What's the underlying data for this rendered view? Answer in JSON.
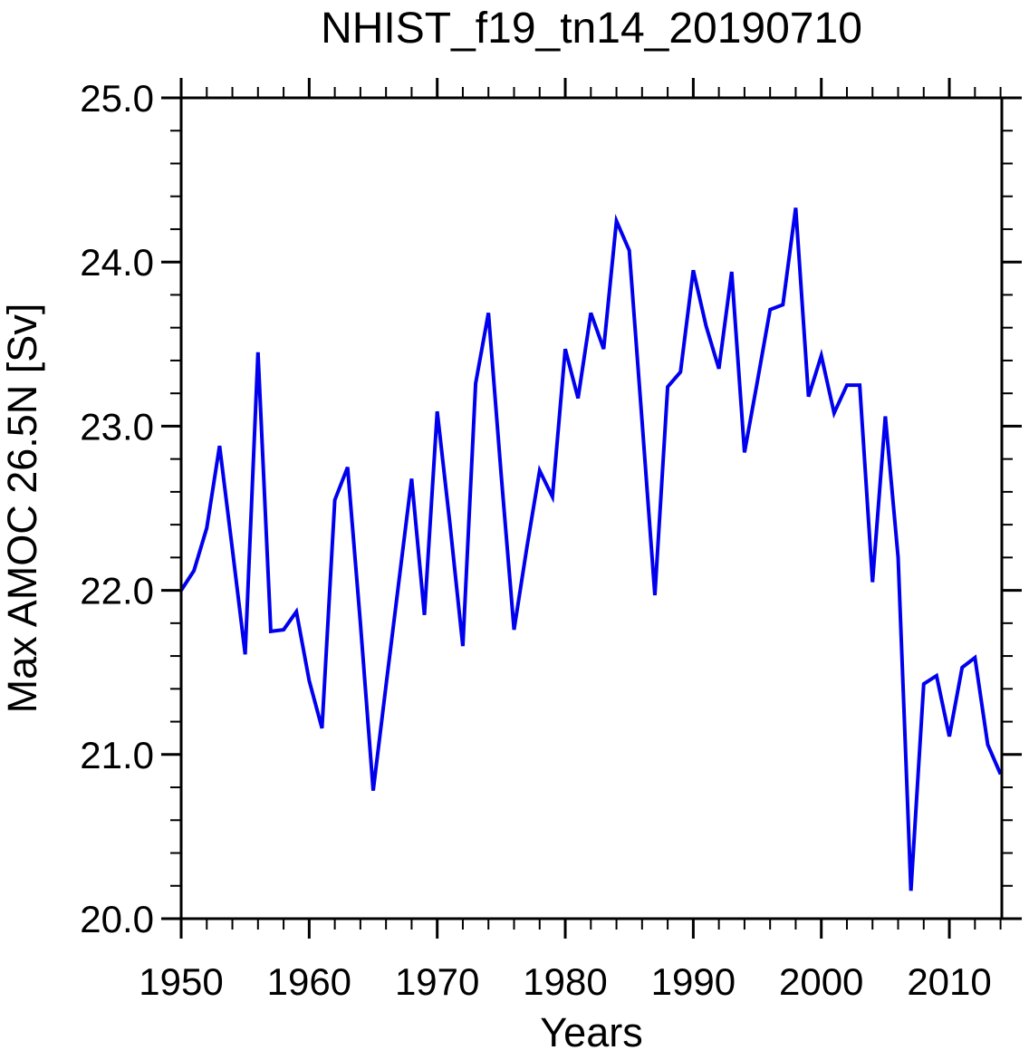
{
  "chart_data": {
    "type": "line",
    "title": "NHIST_f19_tn14_20190710",
    "xlabel": "Years",
    "ylabel": "Max AMOC 26.5N [Sv]",
    "xlim": [
      1950,
      2014.1
    ],
    "ylim": [
      20.0,
      25.0
    ],
    "grid": false,
    "x_major_ticks": [
      1950,
      1960,
      1970,
      1980,
      1990,
      2000,
      2010
    ],
    "x_major_tick_labels": [
      "1950",
      "1960",
      "1970",
      "1980",
      "1990",
      "2000",
      "2010"
    ],
    "x_minor_tick_step": 2,
    "y_major_ticks": [
      20,
      21,
      22,
      23,
      24,
      25
    ],
    "y_major_tick_labels": [
      "20.0",
      "21.0",
      "22.0",
      "23.0",
      "24.0",
      "25.0"
    ],
    "y_minor_tick_step": 0.2,
    "line_color": "#0000ee",
    "axis_color": "#000000",
    "series": [
      {
        "x": [
          1950,
          1951,
          1952,
          1953,
          1954,
          1955,
          1956,
          1957,
          1958,
          1959,
          1960,
          1961,
          1962,
          1963,
          1964,
          1965,
          1966,
          1967,
          1968,
          1969,
          1970,
          1971,
          1972,
          1973,
          1974,
          1975,
          1976,
          1977,
          1978,
          1979,
          1980,
          1981,
          1982,
          1983,
          1984,
          1985,
          1986,
          1987,
          1988,
          1989,
          1990,
          1991,
          1992,
          1993,
          1994,
          1995,
          1996,
          1997,
          1998,
          1999,
          2000,
          2001,
          2002,
          2003,
          2004,
          2005,
          2006,
          2007,
          2008,
          2009,
          2010,
          2011,
          2012,
          2013,
          2014
        ],
        "values": [
          22.0,
          22.12,
          22.38,
          22.88,
          22.25,
          21.61,
          23.45,
          21.75,
          21.76,
          21.87,
          21.45,
          21.16,
          22.55,
          22.75,
          21.8,
          20.78,
          21.42,
          22.05,
          22.68,
          21.85,
          23.09,
          22.4,
          21.66,
          23.26,
          23.69,
          22.7,
          21.76,
          22.26,
          22.73,
          22.57,
          23.47,
          23.17,
          23.69,
          23.47,
          24.25,
          24.07,
          23.03,
          21.97,
          23.24,
          23.33,
          23.95,
          23.61,
          23.35,
          23.94,
          22.84,
          23.27,
          23.71,
          23.74,
          24.33,
          23.18,
          23.43,
          23.08,
          23.25,
          23.25,
          22.05,
          23.06,
          22.2,
          20.17,
          21.43,
          21.48,
          21.11,
          21.53,
          21.59,
          21.06,
          20.88
        ]
      }
    ]
  }
}
